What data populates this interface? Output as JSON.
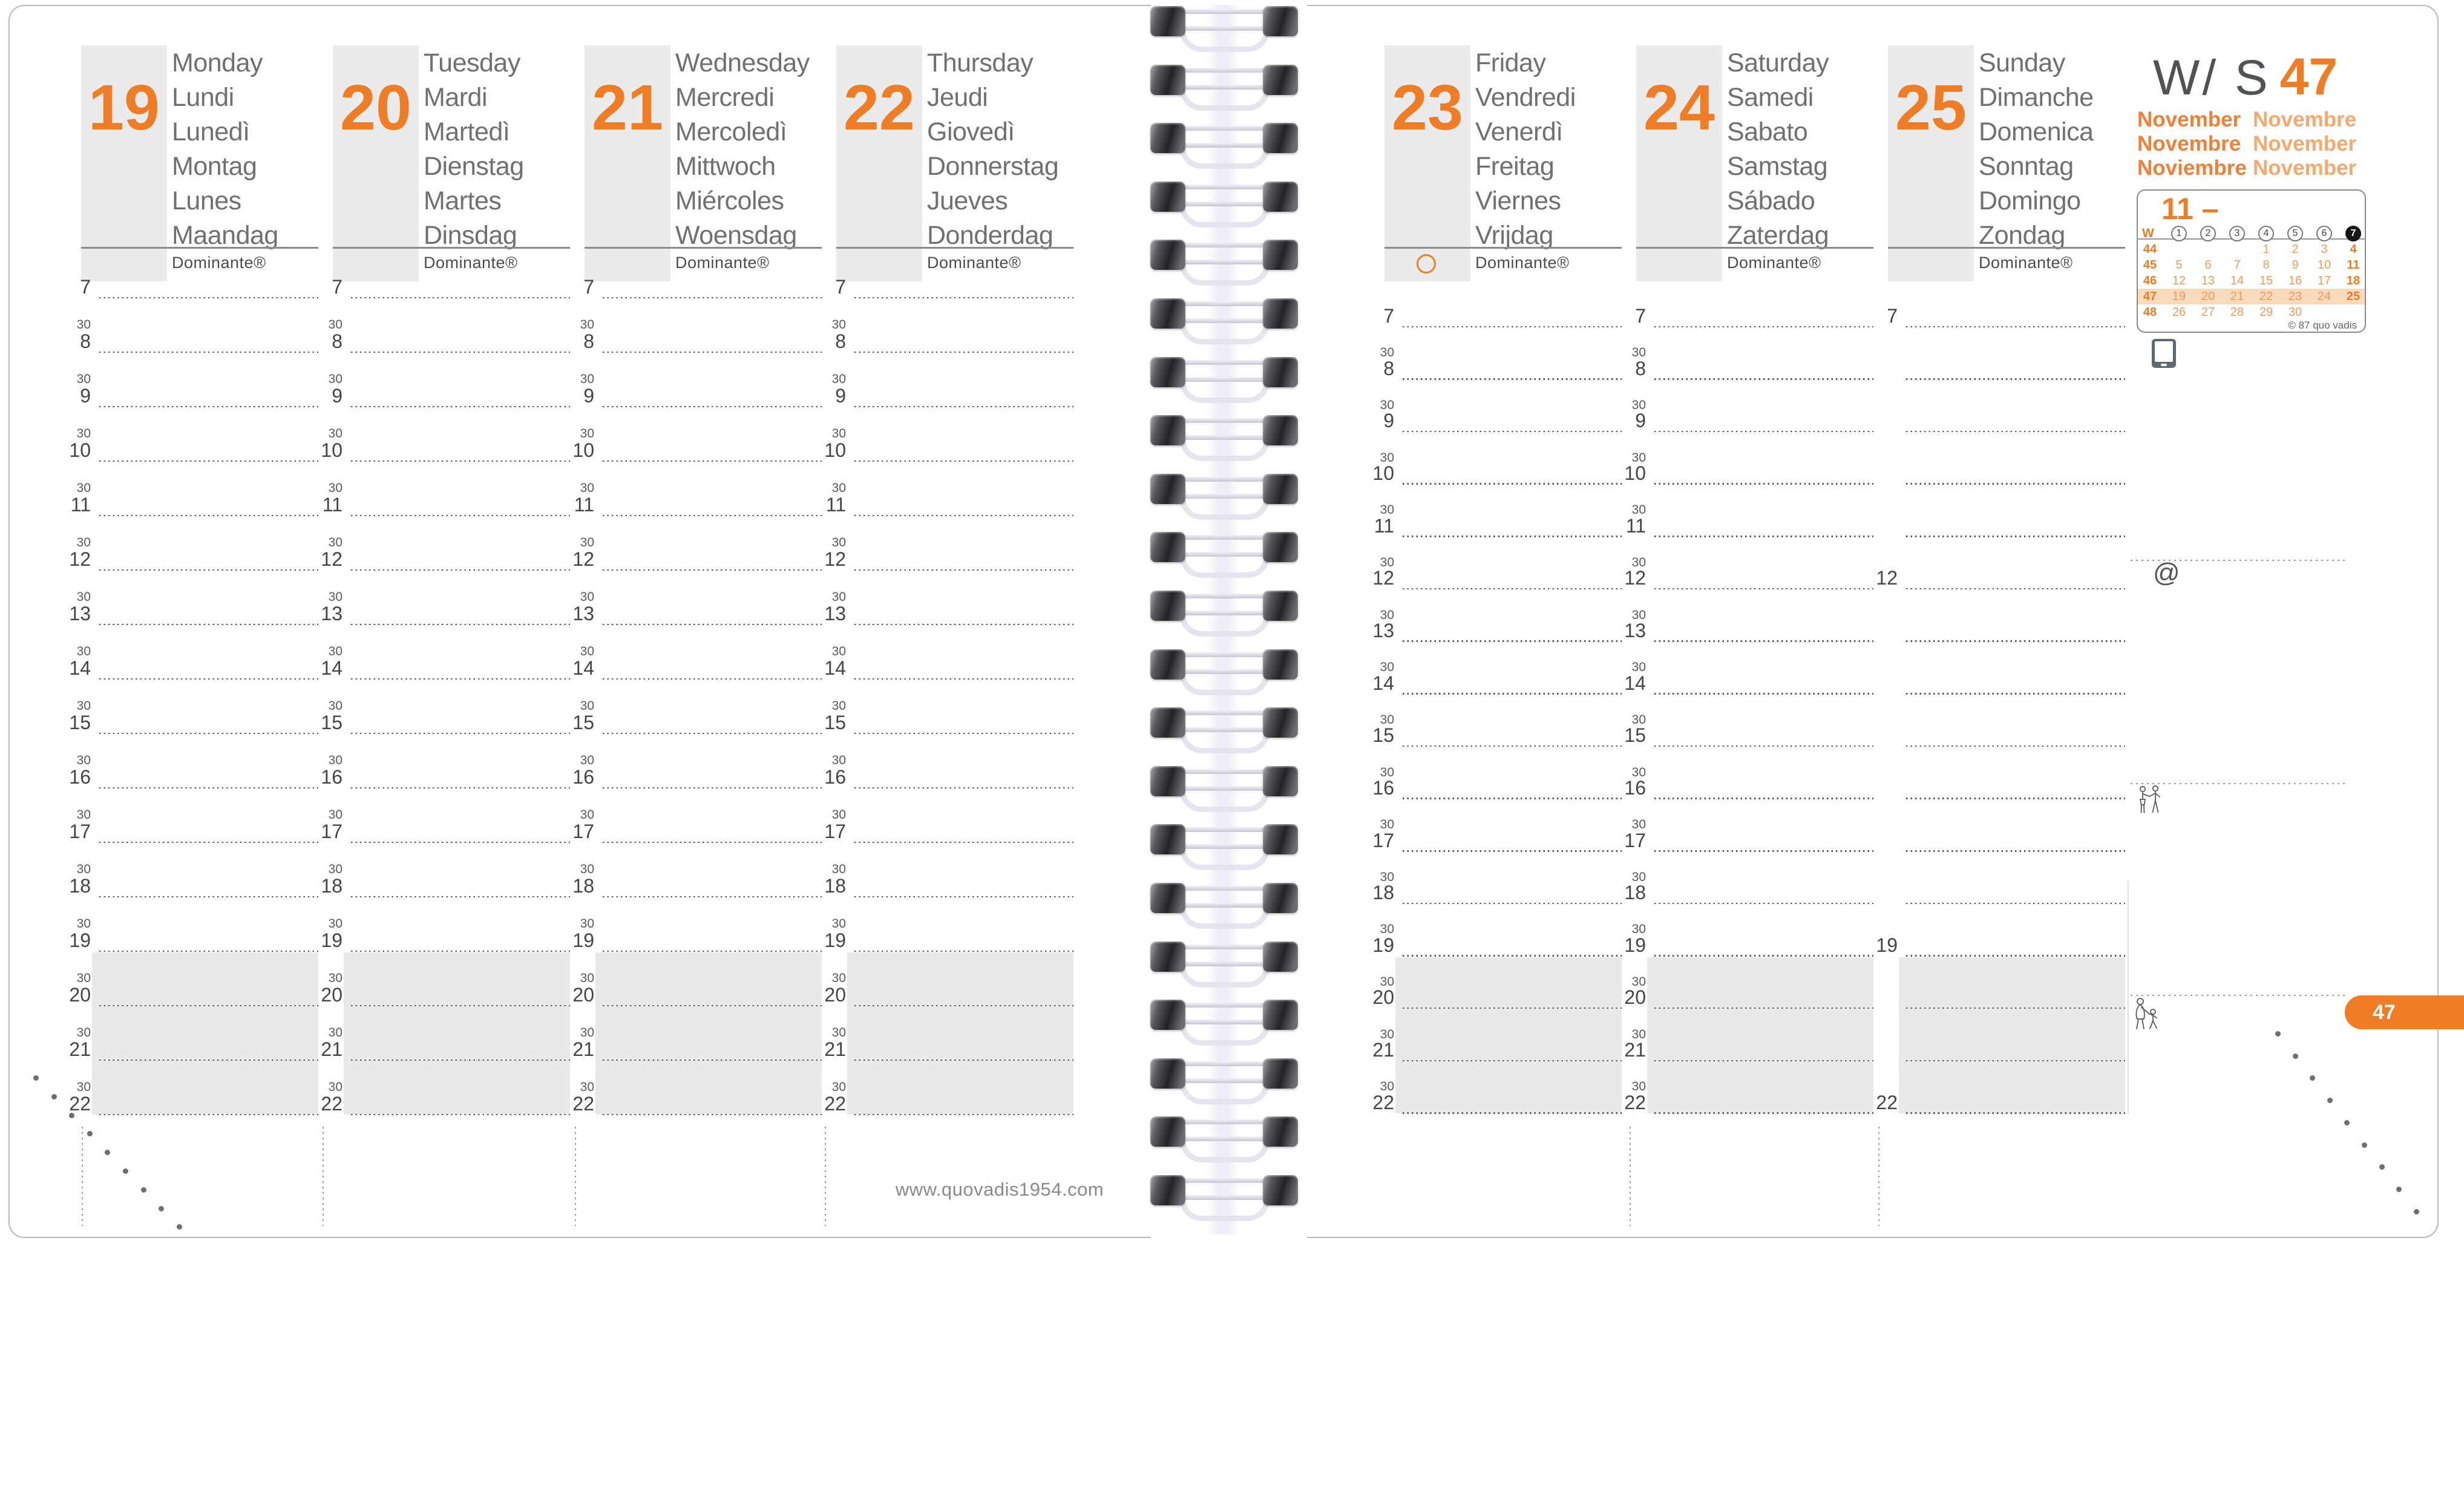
{
  "header": {
    "week_prefix": "W/ S",
    "week_number": "47"
  },
  "months": {
    "primary": [
      "November",
      "Novembre",
      "Noviembre"
    ],
    "secondary": [
      "Novembre",
      "November",
      "November"
    ]
  },
  "mini_calendar": {
    "month_title": "11 –",
    "week_header": "W",
    "day_numbers": [
      "1",
      "2",
      "3",
      "4",
      "5",
      "6",
      "7"
    ],
    "weeks": [
      {
        "num": "44",
        "days": [
          "",
          "",
          "",
          "1",
          "2",
          "3",
          "4"
        ],
        "highlight": false
      },
      {
        "num": "45",
        "days": [
          "5",
          "6",
          "7",
          "8",
          "9",
          "10",
          "11"
        ],
        "highlight": false
      },
      {
        "num": "46",
        "days": [
          "12",
          "13",
          "14",
          "15",
          "16",
          "17",
          "18"
        ],
        "highlight": false
      },
      {
        "num": "47",
        "days": [
          "19",
          "20",
          "21",
          "22",
          "23",
          "24",
          "25"
        ],
        "highlight": true
      },
      {
        "num": "48",
        "days": [
          "26",
          "27",
          "28",
          "29",
          "30",
          "",
          ""
        ],
        "highlight": false
      }
    ],
    "copyright": "© 87 quo vadis"
  },
  "days": [
    {
      "date": "19",
      "names": [
        "Monday",
        "Lundi",
        "Lunedì",
        "Montag",
        "Lunes",
        "Maandag"
      ],
      "brand": "Dominante®",
      "moon_symbol": false
    },
    {
      "date": "20",
      "names": [
        "Tuesday",
        "Mardi",
        "Martedì",
        "Dienstag",
        "Martes",
        "Dinsdag"
      ],
      "brand": "Dominante®",
      "moon_symbol": false
    },
    {
      "date": "21",
      "names": [
        "Wednesday",
        "Mercredi",
        "Mercoledì",
        "Mittwoch",
        "Miércoles",
        "Woensdag"
      ],
      "brand": "Dominante®",
      "moon_symbol": false
    },
    {
      "date": "22",
      "names": [
        "Thursday",
        "Jeudi",
        "Giovedì",
        "Donnerstag",
        "Jueves",
        "Donderdag"
      ],
      "brand": "Dominante®",
      "moon_symbol": false
    },
    {
      "date": "23",
      "names": [
        "Friday",
        "Vendredi",
        "Venerdì",
        "Freitag",
        "Viernes",
        "Vrijdag"
      ],
      "brand": "Dominante®",
      "moon_symbol": true
    },
    {
      "date": "24",
      "names": [
        "Saturday",
        "Samedi",
        "Sabato",
        "Samstag",
        "Sábado",
        "Zaterdag"
      ],
      "brand": "Dominante®",
      "moon_symbol": false
    },
    {
      "date": "25",
      "names": [
        "Sunday",
        "Dimanche",
        "Domenica",
        "Sonntag",
        "Domingo",
        "Zondag"
      ],
      "brand": "Dominante®",
      "moon_symbol": false
    }
  ],
  "schedule": {
    "hour_start": 7,
    "hour_end": 22,
    "half_hour_label": "30",
    "sunday_visible_hour_labels": [
      7,
      12,
      19,
      22
    ]
  },
  "footer": {
    "website": "www.quovadis1954.com"
  },
  "page_tab": {
    "label": "47"
  },
  "right_panel": {
    "at_symbol": "@"
  },
  "colors": {
    "accent_orange": "#ef7d26",
    "light_orange": "#f19a5e",
    "pale_orange": "#f6a96f",
    "highlight_band": "#fbd9bb",
    "header_box_gray": "#ebebeb",
    "evening_shade_gray": "#e9e9e9"
  }
}
